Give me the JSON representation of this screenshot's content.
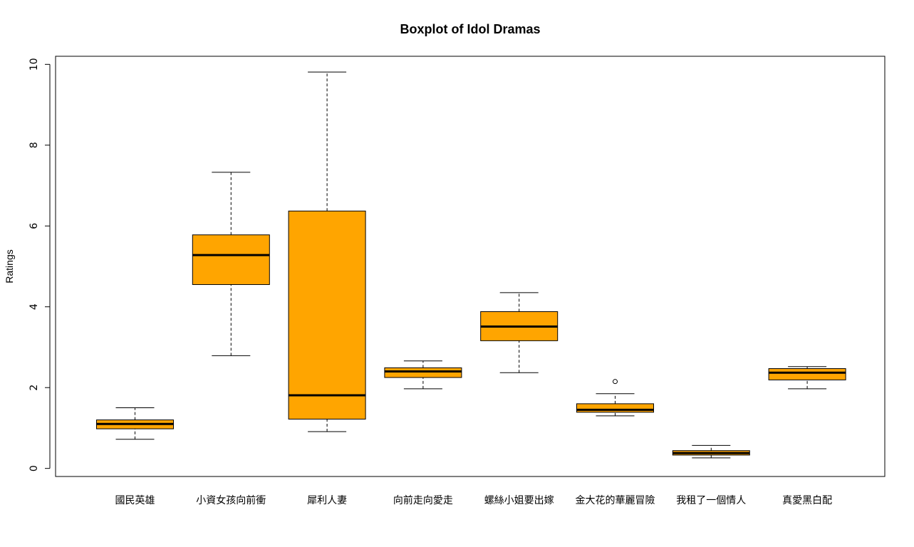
{
  "chart_data": {
    "type": "boxplot",
    "title": "Boxplot of Idol Dramas",
    "xlabel": "",
    "ylabel": "Ratings",
    "ylim": [
      -0.2,
      10.2
    ],
    "yticks": [
      0,
      2,
      4,
      6,
      8,
      10
    ],
    "grid": false,
    "legend": "none",
    "colors": {
      "box_fill": "#FFA500",
      "stroke": "#000000"
    },
    "categories": [
      "國民英雄",
      "小資女孩向前衝",
      "犀利人妻",
      "向前走向愛走",
      "螺絲小姐要出嫁",
      "金大花的華麗冒險",
      "我租了一個情人",
      "真愛黑白配"
    ],
    "boxes": [
      {
        "min": 0.72,
        "q1": 0.98,
        "median": 1.1,
        "q3": 1.2,
        "max": 1.5,
        "outliers": []
      },
      {
        "min": 2.79,
        "q1": 4.55,
        "median": 5.28,
        "q3": 5.78,
        "max": 7.33,
        "outliers": []
      },
      {
        "min": 0.91,
        "q1": 1.22,
        "median": 1.81,
        "q3": 6.37,
        "max": 9.81,
        "outliers": []
      },
      {
        "min": 1.97,
        "q1": 2.25,
        "median": 2.4,
        "q3": 2.49,
        "max": 2.66,
        "outliers": []
      },
      {
        "min": 2.37,
        "q1": 3.16,
        "median": 3.51,
        "q3": 3.88,
        "max": 4.35,
        "outliers": []
      },
      {
        "min": 1.3,
        "q1": 1.39,
        "median": 1.45,
        "q3": 1.6,
        "max": 1.85,
        "outliers": [
          2.15
        ]
      },
      {
        "min": 0.26,
        "q1": 0.33,
        "median": 0.38,
        "q3": 0.44,
        "max": 0.57,
        "outliers": []
      },
      {
        "min": 1.97,
        "q1": 2.19,
        "median": 2.37,
        "q3": 2.47,
        "max": 2.52,
        "outliers": []
      }
    ]
  }
}
